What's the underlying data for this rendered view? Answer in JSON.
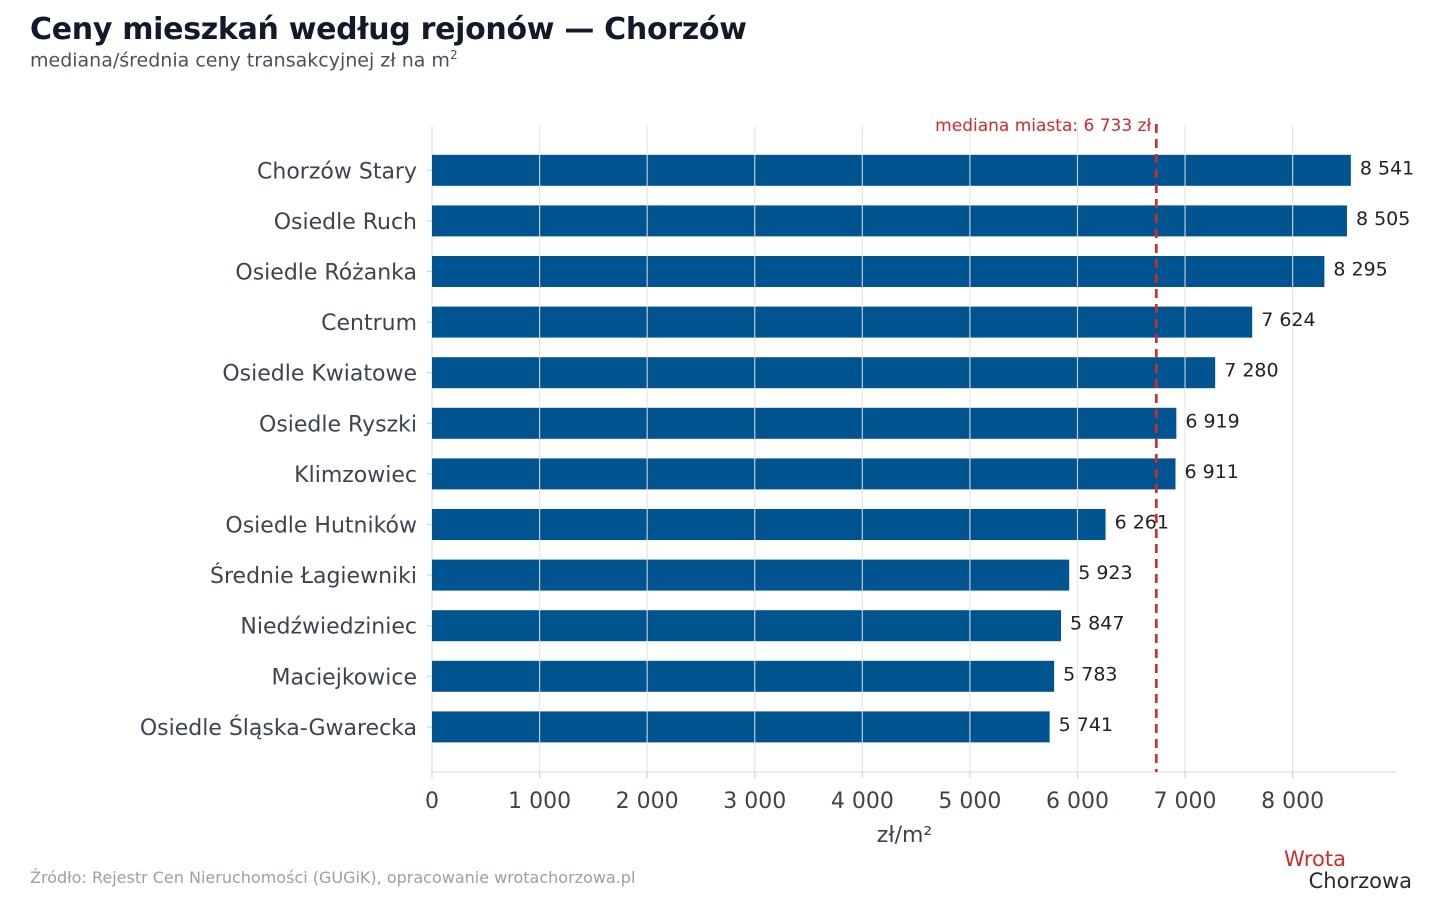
{
  "header": {
    "title": "Ceny mieszkań według rejonów — Chorzów",
    "subtitle": "mediana/średnia ceny transakcyjnej zł na m",
    "subtitle_sup": "2"
  },
  "source": "Źródło: Rejestr Cen Nieruchomości (GUGiK), opracowanie wrotachorzowa.pl",
  "logo": {
    "line1": "Wrota",
    "line2": "Chorzowa"
  },
  "colors": {
    "bar": "#00548f",
    "median": "#d62828",
    "grid": "#e2e2e2"
  },
  "chart_data": {
    "type": "bar",
    "orientation": "horizontal",
    "categories": [
      "Chorzów Stary",
      "Osiedle Ruch",
      "Osiedle Różanka",
      "Centrum",
      "Osiedle Kwiatowe",
      "Osiedle Ryszki",
      "Klimzowiec",
      "Osiedle Hutników",
      "Średnie Łagiewniki",
      "Niedźwiedziniec",
      "Maciejkowice",
      "Osiedle Śląska-Gwarecka"
    ],
    "values": [
      8541,
      8505,
      8295,
      7624,
      7280,
      6919,
      6911,
      6261,
      5923,
      5847,
      5783,
      5741
    ],
    "value_labels": [
      "8 541",
      "8 505",
      "8 295",
      "7 624",
      "7 280",
      "6 919",
      "6 911",
      "6 261",
      "5 923",
      "5 847",
      "5 783",
      "5 741"
    ],
    "xlabel": "zł/m²",
    "xlim": [
      0,
      8970
    ],
    "xticks": [
      0,
      1000,
      2000,
      3000,
      4000,
      5000,
      6000,
      7000,
      8000
    ],
    "xtick_labels": [
      "0",
      "1 000",
      "2 000",
      "3 000",
      "4 000",
      "5 000",
      "6 000",
      "7 000",
      "8 000"
    ],
    "grid": true,
    "reference_line": {
      "value": 6733,
      "label": "mediana miasta: 6 733 zł"
    }
  }
}
